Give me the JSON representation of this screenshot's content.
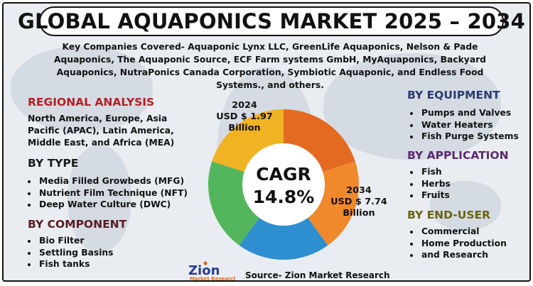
{
  "title": "GLOBAL AQUAPONICS MARKET 2025 – 2034",
  "companies": "Key Companies Covered- Aquaponic Lynx LLC, GreenLife Aquaponics, Nelson & Pade Aquaponics, The Aquaponic Source, ECF Farm systems GmbH, MyAquaponics, Backyard Aquaponics, NutraPonics Canada Corporation, Symbiotic Aquaponic, and Endless Food Systems., and others.",
  "regional": {
    "heading": "REGIONAL ANALYSIS",
    "text": "North America, Europe, Asia Pacific (APAC), Latin America, Middle East, and Africa (MEA)"
  },
  "type": {
    "heading": "BY TYPE",
    "items": [
      "Media Filled Growbeds (MFG)",
      "Nutrient Film Technique (NFT)",
      "Deep Water Culture (DWC)"
    ]
  },
  "component": {
    "heading": "BY COMPONENT",
    "items": [
      "Bio Filter",
      "Settling Basins",
      "Fish tanks"
    ]
  },
  "equipment": {
    "heading": "BY EQUIPMENT",
    "items": [
      "Pumps and Valves",
      "Water Heaters",
      "Fish Purge Systems"
    ]
  },
  "application": {
    "heading": "BY APPLICATION",
    "items": [
      "Fish",
      "Herbs",
      "Fruits"
    ]
  },
  "end_user": {
    "heading": "BY END-USER",
    "items": [
      "Commercial",
      "Home Production",
      "and Research"
    ]
  },
  "logo": {
    "word": "Zion",
    "sub": "Market Research"
  },
  "source": "Source- Zion Market Research",
  "chart_data": {
    "type": "pie",
    "center_label": "CAGR",
    "center_value": "14.8%",
    "slice_colors": [
      "#e46a22",
      "#f0892c",
      "#2e8fd0",
      "#54b65c",
      "#f0b323"
    ],
    "annotations": [
      {
        "year": "2024",
        "value": "USD $ 1.97",
        "unit": "Billion"
      },
      {
        "year": "2034",
        "value": "USD $ 7.74",
        "unit": "Billion"
      }
    ]
  }
}
